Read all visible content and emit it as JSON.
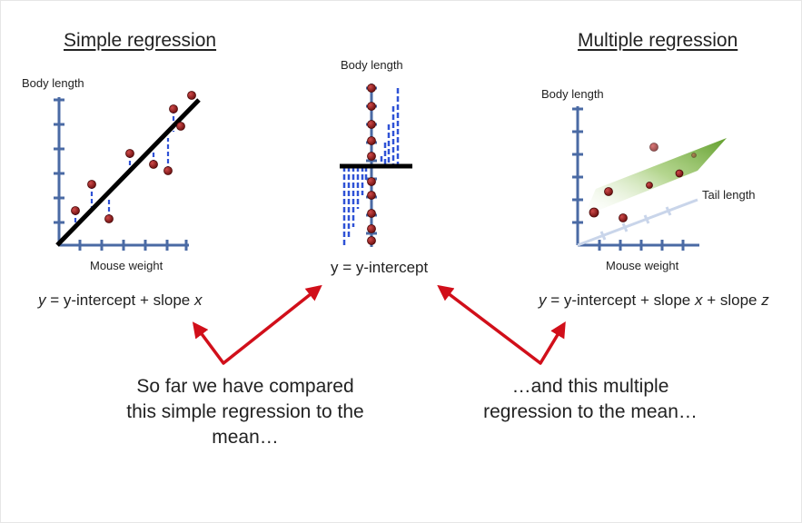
{
  "left": {
    "title": "Simple regression",
    "y_axis_label": "Body length",
    "x_axis_label": "Mouse weight",
    "equation": {
      "var1": "y",
      "mid": " = y-intercept + slope ",
      "var2": "x"
    }
  },
  "center": {
    "y_axis_label": "Body length",
    "equation": "y = y-intercept"
  },
  "right": {
    "title": "Multiple regression",
    "y_axis_label": "Body length",
    "x_axis_label": "Mouse weight",
    "z_axis_label": "Tail length",
    "equation": {
      "var1": "y",
      "mid1": " = y-intercept + slope ",
      "var2": "x",
      "mid2": " + slope ",
      "var3": "z"
    }
  },
  "captions": {
    "left_line1": "So far we have compared",
    "left_line2": "this simple regression to the",
    "left_line3": "mean…",
    "right_line1": "…and this multiple",
    "right_line2": "regression to the mean…"
  },
  "colors": {
    "axis": "#4a6aa4",
    "point": "#8b1a1a",
    "residual": "#2f52d6",
    "arrow": "#d10f1a",
    "plane": "#6fae2f"
  }
}
